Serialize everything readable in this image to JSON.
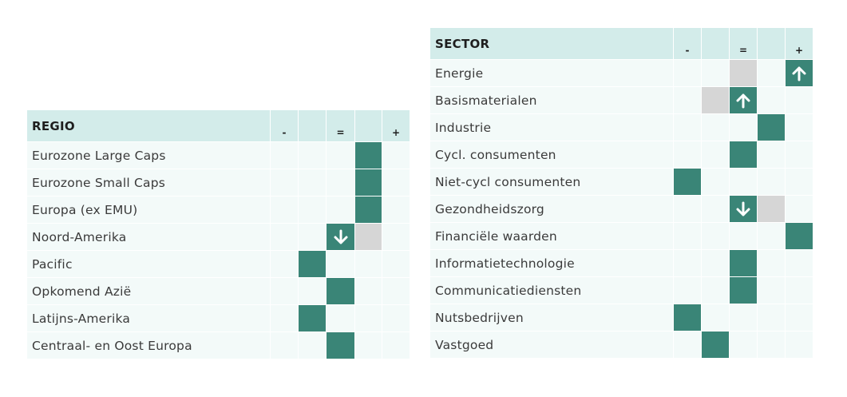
{
  "colors": {
    "active": "#3a8577",
    "previous": "#d6d6d6",
    "header_bg": "#d3ecea",
    "row_bg": "#f3faf9"
  },
  "regio": {
    "title": "REGIO",
    "scale": [
      "-",
      "",
      "=",
      "",
      "+"
    ],
    "rows": [
      {
        "label": "Eurozone Large Caps",
        "active": 4
      },
      {
        "label": "Eurozone Small Caps",
        "active": 4
      },
      {
        "label": "Europa (ex EMU)",
        "active": 4
      },
      {
        "label": "Noord-Amerika",
        "active": 3,
        "previous": 4,
        "arrow": "down"
      },
      {
        "label": "Pacific",
        "active": 2
      },
      {
        "label": "Opkomend Azië",
        "active": 3
      },
      {
        "label": "Latijns-Amerika",
        "active": 2
      },
      {
        "label": "Centraal- en Oost Europa",
        "active": 3
      }
    ]
  },
  "sector": {
    "title": "SECTOR",
    "scale": [
      "-",
      "",
      "=",
      "",
      "+"
    ],
    "rows": [
      {
        "label": "Energie",
        "active": 5,
        "previous": 3,
        "arrow": "up"
      },
      {
        "label": "Basismaterialen",
        "active": 3,
        "previous": 2,
        "arrow": "up"
      },
      {
        "label": "Industrie",
        "active": 4
      },
      {
        "label": "Cycl. consumenten",
        "active": 3
      },
      {
        "label": "Niet-cycl consumenten",
        "active": 1
      },
      {
        "label": "Gezondheidszorg",
        "active": 3,
        "previous": 4,
        "arrow": "down"
      },
      {
        "label": "Financiële waarden",
        "active": 5
      },
      {
        "label": "Informatietechnologie",
        "active": 3
      },
      {
        "label": "Communicatiediensten",
        "active": 3
      },
      {
        "label": "Nutsbedrijven",
        "active": 1
      },
      {
        "label": "Vastgoed",
        "active": 2
      }
    ]
  }
}
